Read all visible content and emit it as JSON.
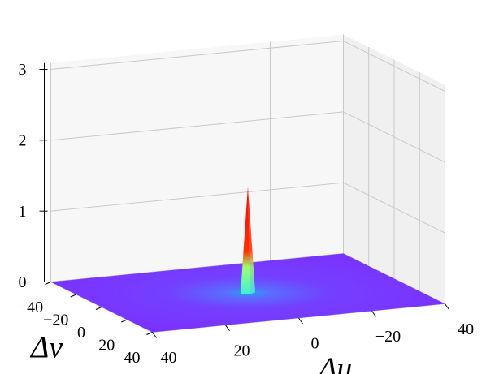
{
  "chart_data": {
    "type": "surface3d",
    "xlabel": "Δu",
    "ylabel": "Δv",
    "xlim": [
      -40,
      40
    ],
    "ylim": [
      -40,
      40
    ],
    "zlim": [
      0,
      3
    ],
    "xticks": [
      40,
      20,
      0,
      {
        "value": -20,
        "label": "−20"
      },
      {
        "value": -40,
        "label": "−40"
      }
    ],
    "yticks": [
      {
        "value": -40,
        "label": "−40"
      },
      {
        "value": -20,
        "label": "−20"
      },
      0,
      20,
      40
    ],
    "zticks": [
      0,
      1,
      2,
      3
    ],
    "peak": {
      "x": 0,
      "y": 0,
      "z": 1.5
    },
    "grid": true
  }
}
